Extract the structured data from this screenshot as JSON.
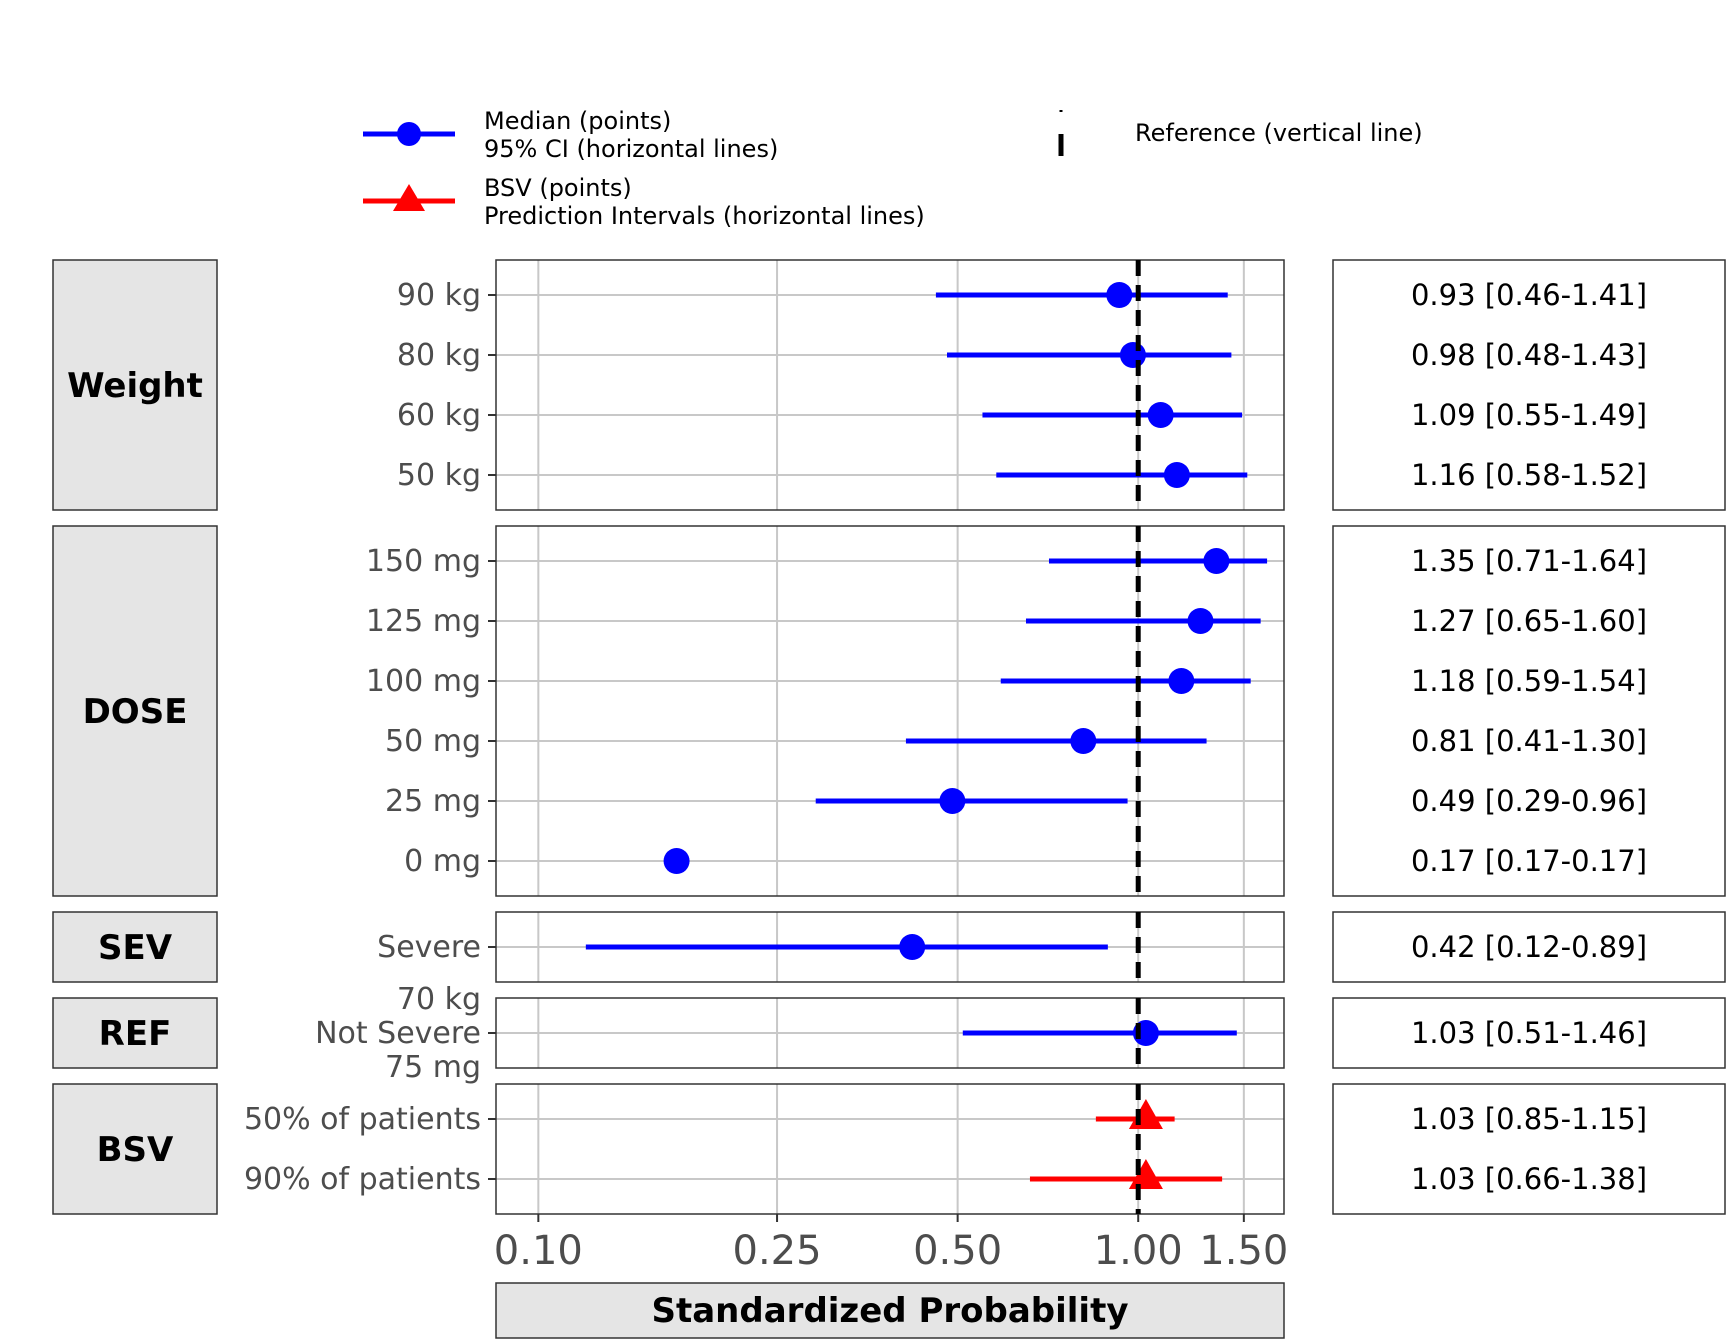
{
  "colors": {
    "median": "#0000ff",
    "bsv": "#ff0000",
    "reference": "#000000",
    "strip_fill": "#e5e5e5",
    "grid": "#c8c8c8"
  },
  "legend": {
    "median": {
      "line1": "Median (points)",
      "line2": "95% CI (horizontal lines)"
    },
    "bsv": {
      "line1": "BSV (points)",
      "line2": "Prediction Intervals (horizontal lines)"
    },
    "reference": {
      "label": "Reference (vertical line)"
    }
  },
  "chart_data": {
    "type": "forest",
    "xlabel": "Standardized Probability",
    "x_scale": "log",
    "xlim": [
      0.085,
      1.75
    ],
    "x_ticks": [
      0.1,
      0.25,
      0.5,
      1.0,
      1.5
    ],
    "x_tick_labels": [
      "0.10",
      "0.25",
      "0.50",
      "1.00",
      "1.50"
    ],
    "reference_x": 1.0,
    "grid": true,
    "facets": [
      {
        "name": "Weight",
        "rows": [
          {
            "label": "90 kg",
            "median": 0.93,
            "lo": 0.46,
            "hi": 1.41,
            "text": "0.93 [0.46-1.41]",
            "kind": "median"
          },
          {
            "label": "80 kg",
            "median": 0.98,
            "lo": 0.48,
            "hi": 1.43,
            "text": "0.98 [0.48-1.43]",
            "kind": "median"
          },
          {
            "label": "60 kg",
            "median": 1.09,
            "lo": 0.55,
            "hi": 1.49,
            "text": "1.09 [0.55-1.49]",
            "kind": "median"
          },
          {
            "label": "50 kg",
            "median": 1.16,
            "lo": 0.58,
            "hi": 1.52,
            "text": "1.16 [0.58-1.52]",
            "kind": "median"
          }
        ]
      },
      {
        "name": "DOSE",
        "rows": [
          {
            "label": "150 mg",
            "median": 1.35,
            "lo": 0.71,
            "hi": 1.64,
            "text": "1.35 [0.71-1.64]",
            "kind": "median"
          },
          {
            "label": "125 mg",
            "median": 1.27,
            "lo": 0.65,
            "hi": 1.6,
            "text": "1.27 [0.65-1.60]",
            "kind": "median"
          },
          {
            "label": "100 mg",
            "median": 1.18,
            "lo": 0.59,
            "hi": 1.54,
            "text": "1.18 [0.59-1.54]",
            "kind": "median"
          },
          {
            "label": "50 mg",
            "median": 0.81,
            "lo": 0.41,
            "hi": 1.3,
            "text": "0.81 [0.41-1.30]",
            "kind": "median"
          },
          {
            "label": "25 mg",
            "median": 0.49,
            "lo": 0.29,
            "hi": 0.96,
            "text": "0.49 [0.29-0.96]",
            "kind": "median"
          },
          {
            "label": "0 mg",
            "median": 0.17,
            "lo": 0.17,
            "hi": 0.17,
            "text": "0.17 [0.17-0.17]",
            "kind": "median"
          }
        ]
      },
      {
        "name": "SEV",
        "rows": [
          {
            "label": "Severe",
            "median": 0.42,
            "lo": 0.12,
            "hi": 0.89,
            "text": "0.42 [0.12-0.89]",
            "kind": "median"
          }
        ]
      },
      {
        "name": "REF",
        "rows": [
          {
            "label": "70 kg\nNot Severe\n75 mg",
            "median": 1.03,
            "lo": 0.51,
            "hi": 1.46,
            "text": "1.03 [0.51-1.46]",
            "kind": "median"
          }
        ]
      },
      {
        "name": "BSV",
        "rows": [
          {
            "label": "50% of patients",
            "median": 1.03,
            "lo": 0.85,
            "hi": 1.15,
            "text": "1.03 [0.85-1.15]",
            "kind": "bsv"
          },
          {
            "label": "90% of patients",
            "median": 1.03,
            "lo": 0.66,
            "hi": 1.38,
            "text": "1.03 [0.66-1.38]",
            "kind": "bsv"
          }
        ]
      }
    ]
  }
}
